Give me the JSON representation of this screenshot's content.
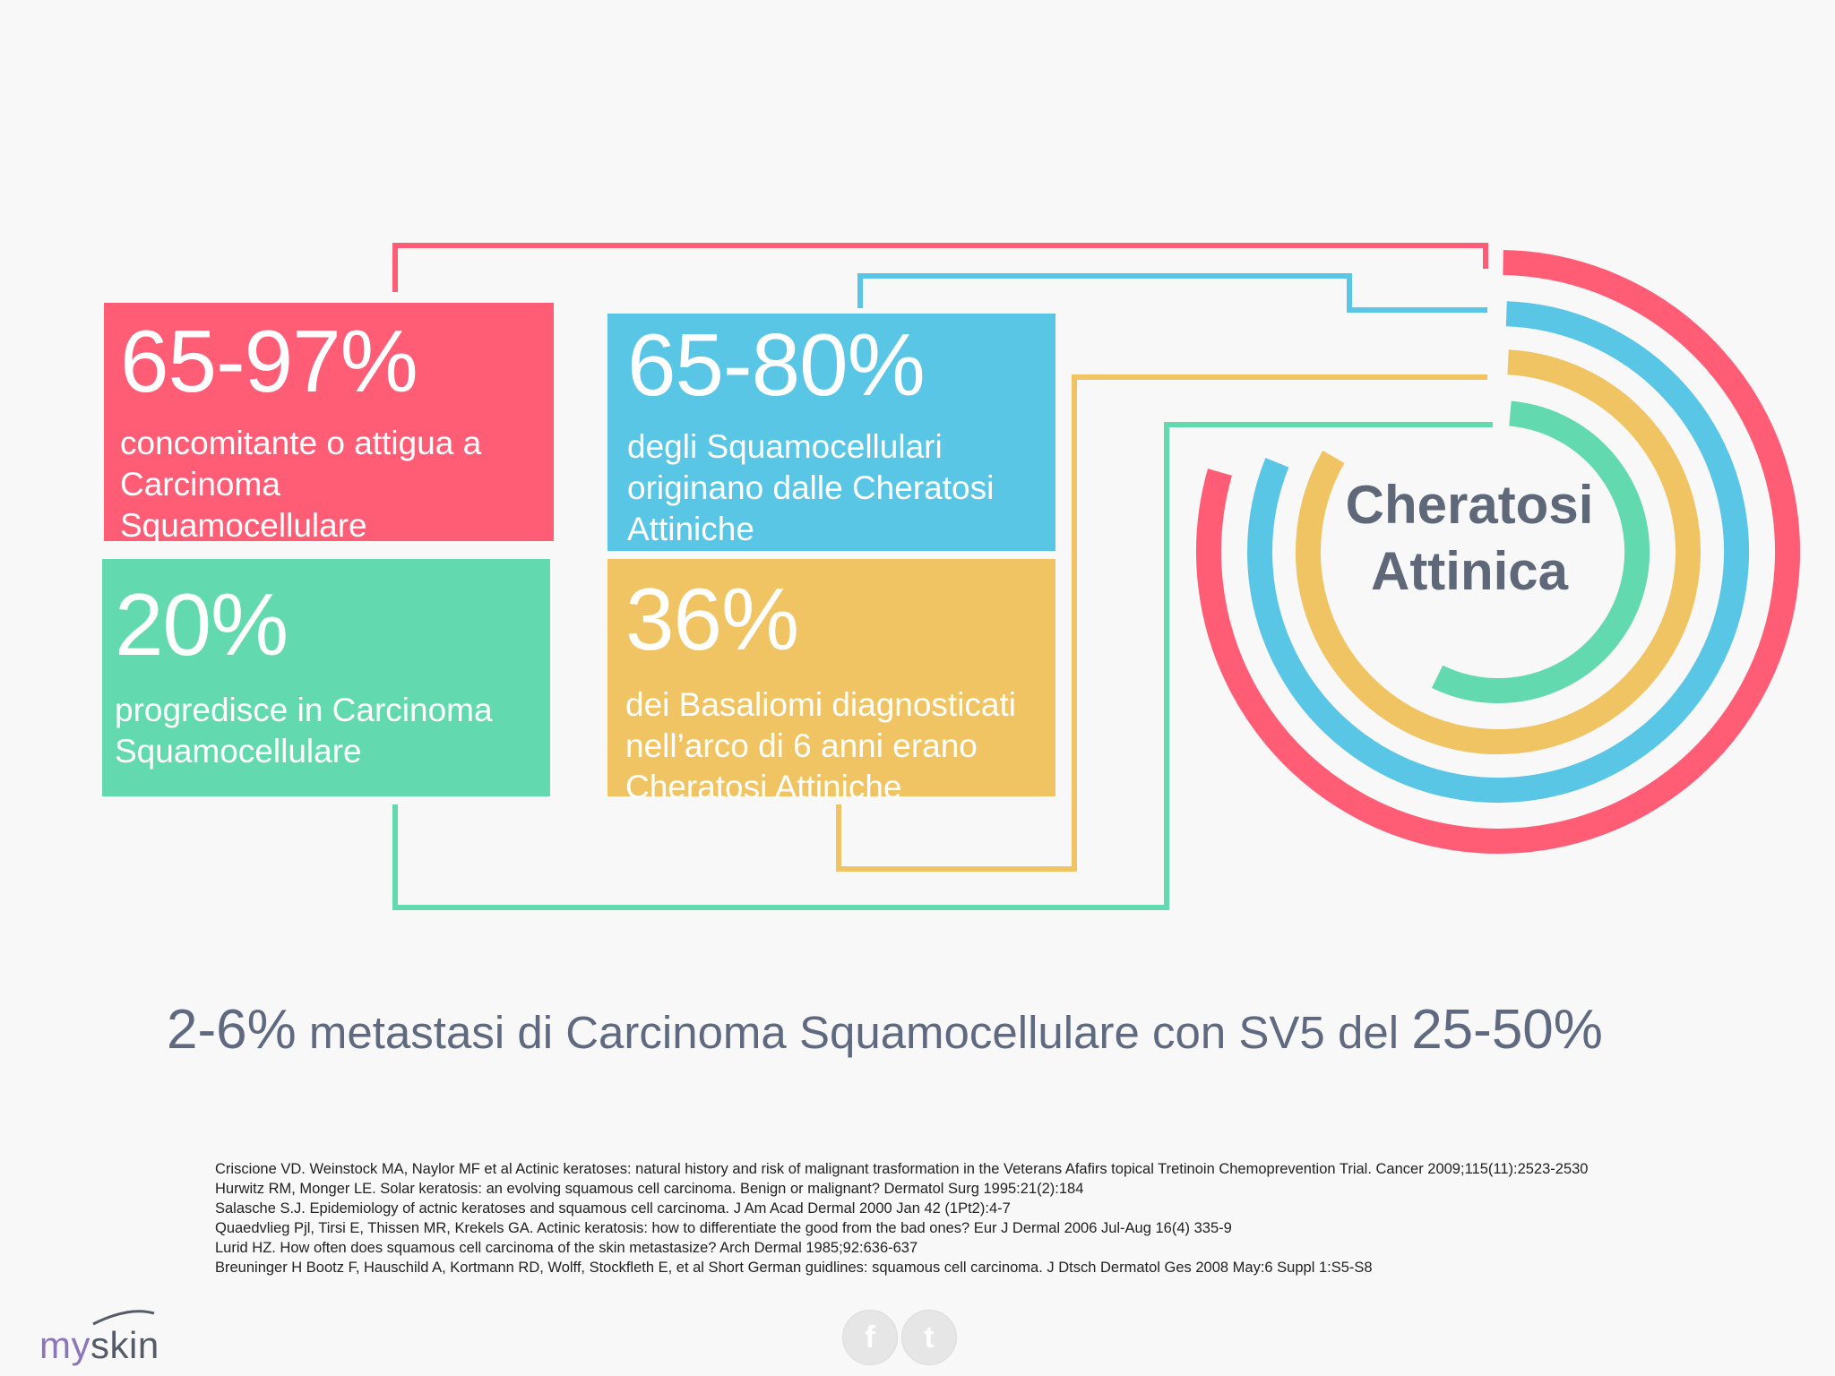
{
  "stats": {
    "red": {
      "value": "65-97%",
      "desc": [
        "concomitante o attigua a",
        "Carcinoma",
        "Squamocellulare"
      ]
    },
    "blue": {
      "value": "65-80%",
      "desc": [
        "degli Squamocellulari",
        "originano dalle Cheratosi",
        "Attiniche"
      ]
    },
    "green": {
      "value": "20%",
      "desc": [
        "progredisce in Carcinoma",
        "Squamocellulare"
      ]
    },
    "yellow": {
      "value": "36%",
      "desc": [
        "dei Basaliomi diagnosticati",
        "nell’arco di 6 anni erano",
        "Cheratosi Attiniche"
      ]
    }
  },
  "center_label": {
    "line1": "Cheratosi",
    "line2": "Attinica"
  },
  "metastasi": {
    "pct1": "2-6%",
    "text": " metastasi di Carcinoma Squamocellulare con SV5 del ",
    "pct2": "25-50%"
  },
  "references": [
    "Criscione VD. Weinstock MA, Naylor MF et al Actinic keratoses: natural history and risk of malignant trasformation in the Veterans Afafirs topical Tretinoin Chemoprevention Trial. Cancer 2009;115(11):2523-2530",
    "Hurwitz RM, Monger LE. Solar keratosis: an evolving squamous cell carcinoma. Benign or malignant? Dermatol Surg 1995:21(2):184",
    "Salasche S.J. Epidemiology of actnic keratoses and squamous cell carcinoma. J Am Acad Dermal 2000 Jan 42 (1Pt2):4-7",
    "Quaedvlieg Pjl, Tirsi E, Thissen MR, Krekels GA. Actinic keratosis: how to differentiate the good from the bad ones? Eur J Dermal 2006 Jul-Aug 16(4) 335-9",
    "Lurid HZ. How often does squamous cell carcinoma of the skin metastasize? Arch Dermal 1985;92:636-637",
    "Breuninger H Bootz F, Hauschild A, Kortmann RD, Wolff, Stockfleth E, et al Short German guidlines: squamous cell carcinoma. J Dtsch Dermatol Ges 2008 May:6 Suppl 1:S5-S8"
  ],
  "logo": {
    "part1": "my",
    "part2": "skin"
  },
  "share": {
    "facebook": "f",
    "twitter": "t"
  },
  "colors": {
    "red": "#ff5d75",
    "blue": "#58c6e4",
    "green": "#63d9b0",
    "yellow": "#f0c462",
    "label": "#5f6878"
  }
}
